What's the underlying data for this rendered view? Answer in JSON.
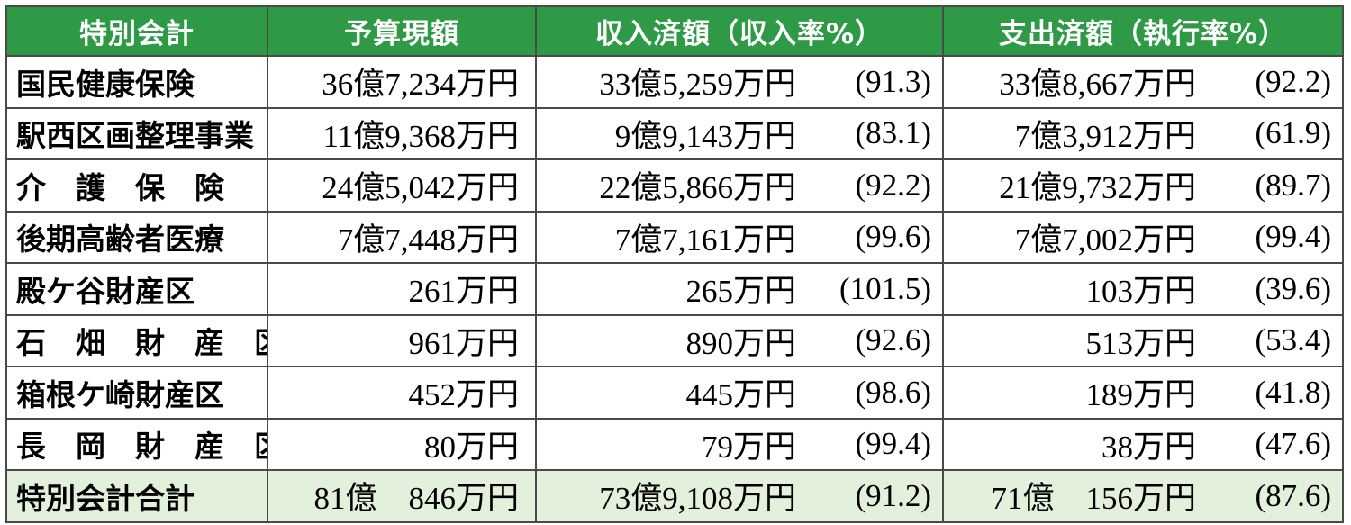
{
  "header": {
    "col_name": "特別会計",
    "col_budget": "予算現額",
    "col_income": "収入済額（収入率%）",
    "col_expense": "支出済額（執行率%）"
  },
  "rows": [
    {
      "name": "国民健康保険",
      "budget": "36億7,234万円",
      "income": "33億5,259万円",
      "income_rate": "(91.3)",
      "expense": "33億8,667万円",
      "expense_rate": "(92.2)"
    },
    {
      "name": "駅西区画整理事業",
      "budget": "11億9,368万円",
      "income": "9億9,143万円",
      "income_rate": "(83.1)",
      "expense": "7億3,912万円",
      "expense_rate": "(61.9)"
    },
    {
      "name": "介　護　保　険",
      "budget": "24億5,042万円",
      "income": "22億5,866万円",
      "income_rate": "(92.2)",
      "expense": "21億9,732万円",
      "expense_rate": "(89.7)"
    },
    {
      "name": "後期高齢者医療",
      "budget": "7億7,448万円",
      "income": "7億7,161万円",
      "income_rate": "(99.6)",
      "expense": "7億7,002万円",
      "expense_rate": "(99.4)"
    },
    {
      "name": "殿ケ谷財産区",
      "budget": "261万円",
      "income": "265万円",
      "income_rate": "(101.5)",
      "expense": "103万円",
      "expense_rate": "(39.6)"
    },
    {
      "name": "石　畑　財　産　区",
      "budget": "961万円",
      "income": "890万円",
      "income_rate": "(92.6)",
      "expense": "513万円",
      "expense_rate": "(53.4)"
    },
    {
      "name": "箱根ケ崎財産区",
      "budget": "452万円",
      "income": "445万円",
      "income_rate": "(98.6)",
      "expense": "189万円",
      "expense_rate": "(41.8)"
    },
    {
      "name": "長　岡　財　産　区",
      "budget": "80万円",
      "income": "79万円",
      "income_rate": "(99.4)",
      "expense": "38万円",
      "expense_rate": "(47.6)"
    }
  ],
  "total": {
    "name": "特別会計合計",
    "budget": "81億　846万円",
    "income": "73億9,108万円",
    "income_rate": "(91.2)",
    "expense": "71億　156万円",
    "expense_rate": "(87.6)"
  },
  "colors": {
    "header_bg": "#2e9a45",
    "header_text": "#ffffff",
    "total_row_bg": "#e3f1dc",
    "border": "#4a4a4a"
  }
}
